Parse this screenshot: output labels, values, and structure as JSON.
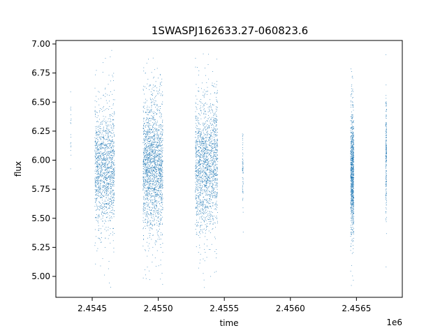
{
  "chart_data": {
    "type": "scatter",
    "title": "1SWASPJ162633.27-060823.6",
    "xlabel": "time",
    "ylabel": "flux",
    "x_offset_label": "1e6",
    "xlim": [
      2454225,
      2456847
    ],
    "ylim": [
      4.82,
      7.03
    ],
    "x_ticks": [
      2454500,
      2455000,
      2455500,
      2456000,
      2456500
    ],
    "x_tick_labels": [
      "2.4545",
      "2.4550",
      "2.4555",
      "2.4560",
      "2.4565"
    ],
    "y_ticks": [
      5.0,
      5.25,
      5.5,
      5.75,
      6.0,
      6.25,
      6.5,
      6.75,
      7.0
    ],
    "y_tick_labels": [
      "5.00",
      "5.25",
      "5.50",
      "5.75",
      "6.00",
      "6.25",
      "6.50",
      "6.75",
      "7.00"
    ],
    "grid": false,
    "marker_color": "#1f77b4",
    "series": [
      {
        "values": [
          {
            "x_center": 2454338,
            "x_spread": 3,
            "y_center": 6.35,
            "y_spread": 0.35,
            "count": 18
          },
          {
            "x_center": 2454595,
            "x_spread": 75,
            "y_center": 5.93,
            "y_spread": 0.45,
            "count": 1400
          },
          {
            "x_center": 2454960,
            "x_spread": 75,
            "y_center": 5.95,
            "y_spread": 0.5,
            "count": 1900
          },
          {
            "x_center": 2455365,
            "x_spread": 85,
            "y_center": 5.96,
            "y_spread": 0.5,
            "count": 1700
          },
          {
            "x_center": 2455640,
            "x_spread": 3,
            "y_center": 5.92,
            "y_spread": 0.3,
            "count": 60
          },
          {
            "x_center": 2456468,
            "x_spread": 12,
            "y_center": 5.9,
            "y_spread": 0.45,
            "count": 900
          },
          {
            "x_center": 2456725,
            "x_spread": 3,
            "y_center": 6.0,
            "y_spread": 0.45,
            "count": 220
          }
        ]
      }
    ]
  }
}
